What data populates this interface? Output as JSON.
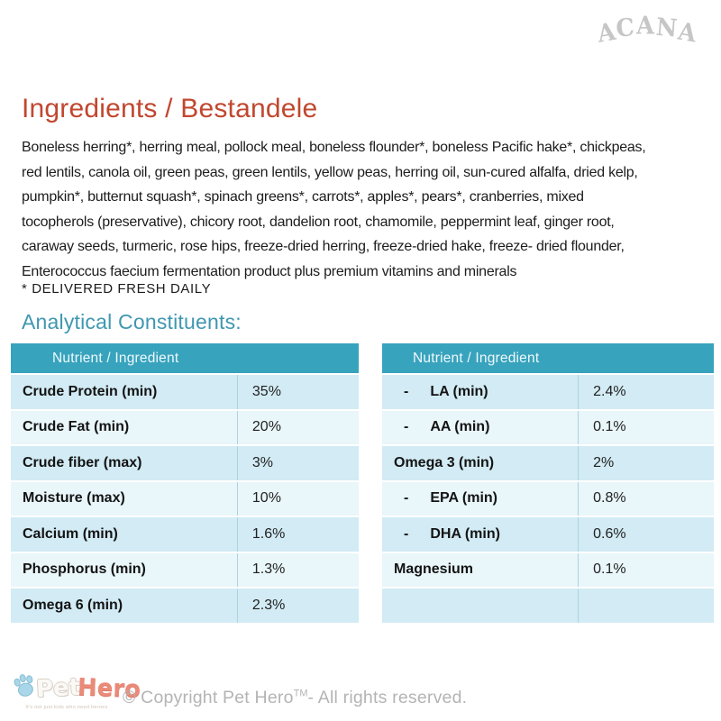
{
  "brand": {
    "logo_text": "ACANA"
  },
  "page": {
    "title": "Ingredients / Bestandele",
    "ingredients_text": "Boneless herring*, herring meal, pollock meal, boneless flounder*, boneless Pacific hake*, chickpeas,\nred lentils, canola oil, green peas, green lentils, yellow peas, herring oil, sun-cured alfalfa, dried kelp,\npumpkin*, butternut squash*, spinach greens*, carrots*, apples*, pears*, cranberries, mixed\ntocopherols (preservative), chicory root, dandelion root, chamomile, peppermint leaf, ginger root,\ncaraway seeds, turmeric, rose hips, freeze-dried herring, freeze-dried hake, freeze- dried flounder,\nEnterococcus faecium fermentation product plus premium vitamins and minerals",
    "fresh_note": "* DELIVERED FRESH DAILY",
    "section_title": "Analytical Constituents:"
  },
  "tables": {
    "header_label": "Nutrient / Ingredient",
    "left": {
      "rows": [
        {
          "label": "Crude Protein (min)",
          "value": "35%"
        },
        {
          "label": "Crude Fat (min)",
          "value": "20%"
        },
        {
          "label": "Crude fiber (max)",
          "value": "3%"
        },
        {
          "label": "Moisture (max)",
          "value": "10%"
        },
        {
          "label": "Calcium (min)",
          "value": "1.6%"
        },
        {
          "label": "Phosphorus (min)",
          "value": "1.3%"
        },
        {
          "label": "Omega 6 (min)",
          "value": "2.3%"
        }
      ]
    },
    "right": {
      "rows": [
        {
          "label": "LA (min)",
          "value": "2.4%",
          "sub": true
        },
        {
          "label": "AA (min)",
          "value": "0.1%",
          "sub": true
        },
        {
          "label": "Omega 3 (min)",
          "value": "2%"
        },
        {
          "label": "EPA (min)",
          "value": "0.8%",
          "sub": true
        },
        {
          "label": "DHA (min)",
          "value": "0.6%",
          "sub": true
        },
        {
          "label": "Magnesium",
          "value": "0.1%"
        },
        {
          "label": "",
          "value": ""
        }
      ]
    }
  },
  "footer": {
    "logo_pet": "Pet",
    "logo_hero": "Hero",
    "logo_tagline": "It's not just kids who need heroes",
    "copyright_pre": "© Copyright Pet Hero",
    "copyright_tm": "TM",
    "copyright_post": "- All rights reserved."
  },
  "colors": {
    "table_header_teal": "#38a3bd",
    "table_row_dark": "#d2ebf4",
    "table_row_light": "#e9f6fa",
    "title_red": "#c1472f",
    "section_teal": "#3f97b1",
    "acana_gray": "#c6c6c6",
    "copyright_gray": "#b4b4b4"
  }
}
